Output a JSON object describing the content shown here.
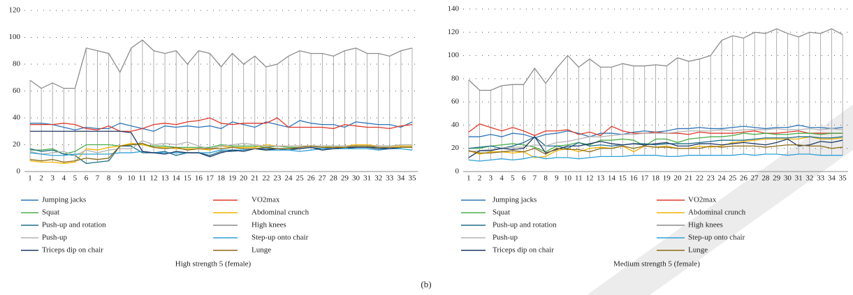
{
  "chart_data": [
    {
      "type": "line",
      "title": "High strength 5 (female)",
      "categories": [
        "1",
        "2",
        "3",
        "4",
        "5",
        "6",
        "7",
        "8",
        "9",
        "10",
        "11",
        "12",
        "13",
        "14",
        "15",
        "16",
        "17",
        "18",
        "19",
        "20",
        "21",
        "22",
        "23",
        "24",
        "25",
        "26",
        "27",
        "28",
        "29",
        "30",
        "31",
        "32",
        "33",
        "34",
        "35"
      ],
      "ylim": [
        0,
        120
      ],
      "yticks": [
        0,
        20,
        40,
        60,
        80,
        100,
        120
      ],
      "grid": true,
      "high_low_lines": true,
      "series": [
        {
          "name": "Jumping jacks",
          "color": "#2e75b6",
          "values": [
            36,
            36,
            35,
            33,
            31,
            33,
            32,
            32,
            36,
            34,
            32,
            30,
            34,
            33,
            34,
            33,
            34,
            32,
            37,
            35,
            33,
            37,
            35,
            33,
            38,
            36,
            35,
            35,
            33,
            37,
            36,
            35,
            35,
            33,
            37
          ]
        },
        {
          "name": "VO2max",
          "color": "#e0382b",
          "values": [
            35,
            35,
            35,
            36,
            35,
            32,
            31,
            34,
            30,
            30,
            32,
            35,
            36,
            35,
            37,
            38,
            40,
            36,
            35,
            36,
            36,
            36,
            40,
            33,
            33,
            33,
            33,
            32,
            35,
            34,
            33,
            33,
            32,
            34,
            35
          ]
        },
        {
          "name": "Squat",
          "color": "#4aad4a",
          "values": [
            16,
            16,
            17,
            13,
            15,
            20,
            20,
            20,
            19,
            20,
            20,
            19,
            19,
            18,
            18,
            18,
            18,
            20,
            19,
            19,
            19,
            18,
            19,
            18,
            18,
            19,
            19,
            19,
            19,
            19,
            19,
            19,
            19,
            19,
            19
          ]
        },
        {
          "name": "Abdominal crunch",
          "color": "#f0b400",
          "values": [
            8,
            7,
            7,
            6,
            7,
            17,
            16,
            18,
            19,
            21,
            20,
            18,
            18,
            17,
            17,
            17,
            16,
            19,
            18,
            18,
            18,
            20,
            19,
            19,
            19,
            19,
            19,
            18,
            19,
            20,
            20,
            19,
            19,
            19,
            19
          ]
        },
        {
          "name": "Push-up and rotation",
          "color": "#1f6f8b",
          "values": [
            17,
            15,
            16,
            13,
            12,
            6,
            7,
            8,
            19,
            19,
            14,
            14,
            15,
            12,
            14,
            14,
            12,
            15,
            15,
            16,
            17,
            17,
            17,
            16,
            17,
            18,
            17,
            18,
            17,
            18,
            18,
            18,
            17,
            18,
            18
          ]
        },
        {
          "name": "High knees",
          "color": "#8c8c8c",
          "values": [
            68,
            62,
            66,
            62,
            62,
            92,
            90,
            88,
            74,
            92,
            98,
            90,
            88,
            90,
            80,
            90,
            88,
            78,
            88,
            80,
            86,
            78,
            80,
            86,
            90,
            88,
            88,
            86,
            90,
            92,
            88,
            88,
            86,
            90,
            92
          ]
        },
        {
          "name": "Push-up",
          "color": "#b4b4b4",
          "values": [
            15,
            13,
            14,
            15,
            12,
            16,
            14,
            16,
            17,
            17,
            23,
            20,
            21,
            20,
            22,
            19,
            17,
            19,
            20,
            21,
            20,
            19,
            19,
            19,
            19,
            19,
            19,
            19,
            19,
            19,
            19,
            19,
            19,
            20,
            20
          ]
        },
        {
          "name": "Step-up onto chair",
          "color": "#2ea0d8",
          "values": [
            14,
            13,
            12,
            12,
            13,
            13,
            13,
            13,
            14,
            14,
            15,
            14,
            14,
            14,
            14,
            14,
            14,
            16,
            16,
            16,
            17,
            16,
            16,
            16,
            15,
            16,
            17,
            17,
            17,
            17,
            17,
            16,
            17,
            17,
            16
          ]
        },
        {
          "name": "Triceps dip on chair",
          "color": "#1f3864",
          "values": [
            30,
            30,
            30,
            30,
            30,
            30,
            30,
            30,
            30,
            29,
            15,
            14,
            13,
            15,
            14,
            14,
            11,
            14,
            16,
            15,
            17,
            16,
            17,
            17,
            17,
            18,
            16,
            17,
            18,
            18,
            18,
            17,
            17,
            18,
            18
          ]
        },
        {
          "name": "Lunge",
          "color": "#8b6914",
          "values": [
            9,
            8,
            9,
            7,
            8,
            10,
            9,
            10,
            19,
            20,
            21,
            18,
            17,
            18,
            16,
            17,
            17,
            17,
            18,
            17,
            17,
            18,
            17,
            17,
            18,
            19,
            18,
            18,
            18,
            19,
            19,
            18,
            18,
            18,
            18
          ]
        }
      ]
    },
    {
      "type": "line",
      "title": "Medium strength 5 (female)",
      "categories": [
        "1",
        "2",
        "3",
        "4",
        "5",
        "6",
        "7",
        "8",
        "9",
        "10",
        "11",
        "12",
        "13",
        "14",
        "15",
        "16",
        "17",
        "18",
        "19",
        "20",
        "21",
        "22",
        "23",
        "24",
        "25",
        "26",
        "27",
        "28",
        "29",
        "30",
        "31",
        "32",
        "33",
        "34",
        "35"
      ],
      "ylim": [
        0,
        140
      ],
      "yticks": [
        0,
        20,
        40,
        60,
        80,
        100,
        120,
        140
      ],
      "grid": true,
      "high_low_lines": true,
      "series": [
        {
          "name": "Jumping jacks",
          "color": "#2e75b6",
          "values": [
            30,
            30,
            32,
            30,
            33,
            32,
            29,
            32,
            33,
            35,
            33,
            30,
            33,
            33,
            32,
            34,
            35,
            34,
            35,
            37,
            37,
            38,
            37,
            37,
            38,
            39,
            38,
            37,
            38,
            38,
            40,
            38,
            38,
            37,
            38
          ]
        },
        {
          "name": "VO2max",
          "color": "#e0382b",
          "values": [
            34,
            41,
            38,
            35,
            38,
            35,
            31,
            35,
            35,
            36,
            32,
            34,
            31,
            39,
            35,
            33,
            33,
            34,
            33,
            33,
            32,
            34,
            33,
            33,
            33,
            34,
            35,
            33,
            33,
            34,
            35,
            33,
            33,
            33,
            33
          ]
        },
        {
          "name": "Squat",
          "color": "#4aad4a",
          "values": [
            20,
            20,
            22,
            23,
            24,
            23,
            21,
            17,
            22,
            23,
            25,
            23,
            27,
            27,
            28,
            27,
            22,
            28,
            28,
            25,
            28,
            29,
            30,
            30,
            31,
            33,
            32,
            33,
            32,
            32,
            33,
            33,
            32,
            33,
            33
          ]
        },
        {
          "name": "Abdominal crunch",
          "color": "#f0b400",
          "values": [
            18,
            15,
            17,
            17,
            16,
            17,
            12,
            13,
            18,
            20,
            17,
            20,
            21,
            20,
            22,
            17,
            22,
            21,
            22,
            20,
            20,
            22,
            21,
            22,
            25,
            26,
            27,
            28,
            28,
            28,
            28,
            30,
            28,
            28,
            29
          ]
        },
        {
          "name": "Push-up and rotation",
          "color": "#1f6f8b",
          "values": [
            20,
            21,
            22,
            20,
            22,
            25,
            30,
            22,
            22,
            20,
            25,
            22,
            23,
            22,
            23,
            24,
            24,
            23,
            24,
            24,
            24,
            25,
            26,
            27,
            27,
            27,
            28,
            29,
            29,
            29,
            30,
            30,
            29,
            29,
            30
          ]
        },
        {
          "name": "High knees",
          "color": "#8c8c8c",
          "values": [
            79,
            70,
            70,
            74,
            75,
            75,
            89,
            76,
            89,
            100,
            90,
            97,
            90,
            90,
            93,
            91,
            91,
            92,
            91,
            98,
            95,
            97,
            100,
            113,
            117,
            115,
            120,
            119,
            123,
            119,
            116,
            120,
            119,
            123,
            118
          ]
        },
        {
          "name": "Push-up",
          "color": "#b4b4b4",
          "values": [
            17,
            18,
            19,
            20,
            21,
            21,
            23,
            22,
            25,
            26,
            28,
            30,
            30,
            31,
            32,
            32,
            33,
            33,
            33,
            34,
            35,
            35,
            35,
            36,
            35,
            36,
            36,
            36,
            37,
            36,
            36,
            37,
            36,
            37,
            36
          ]
        },
        {
          "name": "Step-up onto chair",
          "color": "#2ea0d8",
          "values": [
            10,
            9,
            10,
            11,
            10,
            11,
            13,
            11,
            12,
            12,
            11,
            12,
            13,
            13,
            13,
            14,
            14,
            14,
            13,
            13,
            14,
            14,
            14,
            14,
            14,
            15,
            14,
            15,
            15,
            14,
            15,
            15,
            14,
            14,
            14
          ]
        },
        {
          "name": "Triceps dip on chair",
          "color": "#1f3864",
          "values": [
            12,
            18,
            18,
            20,
            19,
            20,
            30,
            16,
            19,
            22,
            22,
            24,
            26,
            24,
            23,
            24,
            23,
            24,
            25,
            22,
            22,
            24,
            24,
            23,
            24,
            25,
            24,
            23,
            25,
            28,
            22,
            23,
            26,
            25,
            27
          ]
        },
        {
          "name": "Lunge",
          "color": "#8b6914",
          "values": [
            18,
            16,
            16,
            17,
            18,
            17,
            20,
            15,
            20,
            19,
            19,
            17,
            20,
            20,
            22,
            20,
            22,
            21,
            21,
            20,
            20,
            20,
            22,
            21,
            22,
            22,
            22,
            21,
            22,
            23,
            23,
            22,
            22,
            20,
            21
          ]
        }
      ]
    }
  ],
  "figure_label": "(b)"
}
